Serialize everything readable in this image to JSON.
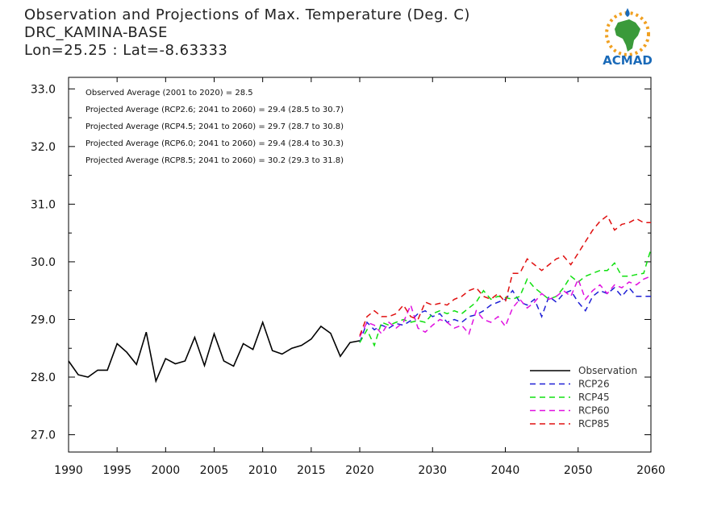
{
  "header": {
    "title": "Observation and Projections of Max. Temperature (Deg. C)",
    "station": "DRC_KAMINA-BASE",
    "coords": "Lon=25.25 : Lat=-8.63333"
  },
  "logo": {
    "text": "ACMAD",
    "icon": "africa-map-logo-icon"
  },
  "annotations": [
    "Observed Average (2001 to 2020) = 28.5",
    "Projected Average (RCP2.6; 2041 to 2060) = 29.4 (28.5 to 30.7)",
    "Projected Average (RCP4.5; 2041 to 2060) = 29.7 (28.7 to 30.8)",
    "Projected Average (RCP6.0; 2041 to 2060) = 29.4 (28.4 to 30.3)",
    "Projected Average (RCP8.5; 2041 to 2060) = 30.2 (29.3 to 31.8)"
  ],
  "chart_data": {
    "type": "line",
    "title": "Observation and Projections of Max. Temperature (Deg. C)",
    "xlabel": "",
    "ylabel": "",
    "xlim": [
      1990,
      2060
    ],
    "ylim": [
      26.7,
      33.2
    ],
    "x_ticks": [
      1990,
      1995,
      2000,
      2005,
      2010,
      2015,
      2020,
      2030,
      2040,
      2050,
      2060
    ],
    "y_ticks": [
      "27.0",
      "28.0",
      "29.0",
      "30.0",
      "31.0",
      "32.0",
      "33.0"
    ],
    "grid": false,
    "legend_position": "bottom-right",
    "series": [
      {
        "name": "Observation",
        "color": "#000000",
        "dash": "solid",
        "x": [
          1990,
          1991,
          1992,
          1993,
          1994,
          1995,
          1996,
          1997,
          1998,
          1999,
          2000,
          2001,
          2002,
          2003,
          2004,
          2005,
          2006,
          2007,
          2008,
          2009,
          2010,
          2011,
          2012,
          2013,
          2014,
          2015,
          2016,
          2017,
          2018,
          2019,
          2020
        ],
        "y": [
          28.28,
          28.04,
          28.0,
          28.12,
          28.12,
          28.58,
          28.43,
          28.22,
          28.78,
          27.93,
          28.32,
          28.23,
          28.28,
          28.69,
          28.2,
          28.75,
          28.28,
          28.19,
          28.58,
          28.48,
          28.95,
          28.46,
          28.4,
          28.5,
          28.55,
          28.66,
          28.88,
          28.76,
          28.36,
          28.6,
          28.63
        ]
      },
      {
        "name": "RCP26",
        "color": "#1f1fd6",
        "dash": "dashed",
        "x": [
          2020,
          2021,
          2022,
          2023,
          2024,
          2025,
          2026,
          2027,
          2028,
          2029,
          2030,
          2031,
          2032,
          2033,
          2034,
          2035,
          2036,
          2037,
          2038,
          2039,
          2040,
          2041,
          2042,
          2043,
          2044,
          2045,
          2046,
          2047,
          2048,
          2049,
          2050,
          2051,
          2052,
          2053,
          2054,
          2055,
          2056,
          2057,
          2058,
          2059,
          2060
        ],
        "y": [
          28.6,
          28.95,
          28.82,
          28.9,
          28.85,
          28.93,
          28.9,
          28.98,
          29.1,
          29.15,
          29.05,
          29.1,
          28.95,
          29.0,
          28.95,
          29.05,
          29.08,
          29.15,
          29.25,
          29.3,
          29.35,
          29.5,
          29.3,
          29.25,
          29.35,
          29.05,
          29.4,
          29.3,
          29.45,
          29.5,
          29.3,
          29.15,
          29.4,
          29.5,
          29.45,
          29.55,
          29.4,
          29.55,
          29.4,
          29.4,
          29.4
        ]
      },
      {
        "name": "RCP45",
        "color": "#10e010",
        "dash": "dashed",
        "x": [
          2020,
          2021,
          2022,
          2023,
          2024,
          2025,
          2026,
          2027,
          2028,
          2029,
          2030,
          2031,
          2032,
          2033,
          2034,
          2035,
          2036,
          2037,
          2038,
          2039,
          2040,
          2041,
          2042,
          2043,
          2044,
          2045,
          2046,
          2047,
          2048,
          2049,
          2050,
          2051,
          2052,
          2053,
          2054,
          2055,
          2056,
          2057,
          2058,
          2059,
          2060
        ],
        "y": [
          28.6,
          28.82,
          28.55,
          28.95,
          28.9,
          28.95,
          29.0,
          28.95,
          28.98,
          28.95,
          29.1,
          29.15,
          29.1,
          29.15,
          29.1,
          29.2,
          29.3,
          29.5,
          29.35,
          29.4,
          29.38,
          29.35,
          29.4,
          29.7,
          29.55,
          29.45,
          29.35,
          29.4,
          29.55,
          29.75,
          29.65,
          29.75,
          29.8,
          29.85,
          29.85,
          29.98,
          29.75,
          29.75,
          29.78,
          29.8,
          30.22
        ]
      },
      {
        "name": "RCP60",
        "color": "#e010e0",
        "dash": "dashed",
        "x": [
          2020,
          2021,
          2022,
          2023,
          2024,
          2025,
          2026,
          2027,
          2028,
          2029,
          2030,
          2031,
          2032,
          2033,
          2034,
          2035,
          2036,
          2037,
          2038,
          2039,
          2040,
          2041,
          2042,
          2043,
          2044,
          2045,
          2046,
          2047,
          2048,
          2049,
          2050,
          2051,
          2052,
          2053,
          2054,
          2055,
          2056,
          2057,
          2058,
          2059,
          2060
        ],
        "y": [
          28.7,
          28.95,
          28.9,
          28.75,
          28.95,
          28.85,
          28.95,
          29.25,
          28.85,
          28.78,
          28.9,
          29.0,
          28.95,
          28.85,
          28.9,
          28.75,
          29.15,
          29.0,
          28.95,
          29.05,
          28.88,
          29.2,
          29.35,
          29.2,
          29.3,
          29.45,
          29.35,
          29.4,
          29.5,
          29.4,
          29.7,
          29.35,
          29.5,
          29.6,
          29.45,
          29.6,
          29.55,
          29.65,
          29.6,
          29.7,
          29.75
        ]
      },
      {
        "name": "RCP85",
        "color": "#e01010",
        "dash": "dashed",
        "x": [
          2020,
          2021,
          2022,
          2023,
          2024,
          2025,
          2026,
          2027,
          2028,
          2029,
          2030,
          2031,
          2032,
          2033,
          2034,
          2035,
          2036,
          2037,
          2038,
          2039,
          2040,
          2041,
          2042,
          2043,
          2044,
          2045,
          2046,
          2047,
          2048,
          2049,
          2050,
          2051,
          2052,
          2053,
          2054,
          2055,
          2056,
          2057,
          2058,
          2059,
          2060
        ],
        "y": [
          28.72,
          29.05,
          29.15,
          29.05,
          29.05,
          29.1,
          29.25,
          29.05,
          29.0,
          29.3,
          29.25,
          29.28,
          29.25,
          29.35,
          29.4,
          29.5,
          29.55,
          29.4,
          29.35,
          29.45,
          29.3,
          29.8,
          29.8,
          30.05,
          29.95,
          29.85,
          29.95,
          30.05,
          30.1,
          29.95,
          30.15,
          30.35,
          30.55,
          30.7,
          30.8,
          30.55,
          30.65,
          30.68,
          30.75,
          30.68,
          30.68
        ]
      }
    ]
  }
}
